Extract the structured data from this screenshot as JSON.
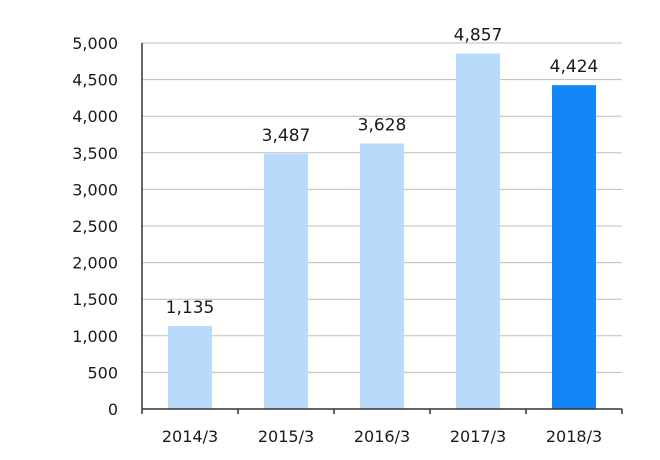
{
  "chart_data": {
    "type": "bar",
    "title": "",
    "xlabel": "",
    "ylabel": "",
    "categories": [
      "2014/3",
      "2015/3",
      "2016/3",
      "2017/3",
      "2018/3"
    ],
    "values": [
      1135,
      3487,
      3628,
      4857,
      4424
    ],
    "value_labels": [
      "1,135",
      "3,487",
      "3,628",
      "4,857",
      "4,424"
    ],
    "ylim": [
      0,
      5000
    ],
    "yticks": [
      0,
      500,
      1000,
      1500,
      2000,
      2500,
      3000,
      3500,
      4000,
      4500,
      5000
    ],
    "ytick_labels": [
      "0",
      "500",
      "1,000",
      "1,500",
      "2,000",
      "2,500",
      "3,000",
      "3,500",
      "4,000",
      "4,500",
      "5,000"
    ],
    "grid": true,
    "legend": "none",
    "colors": {
      "default_bar": "#b9dbfb",
      "highlight_bar": "#1387f7"
    },
    "highlight_index": 4
  }
}
